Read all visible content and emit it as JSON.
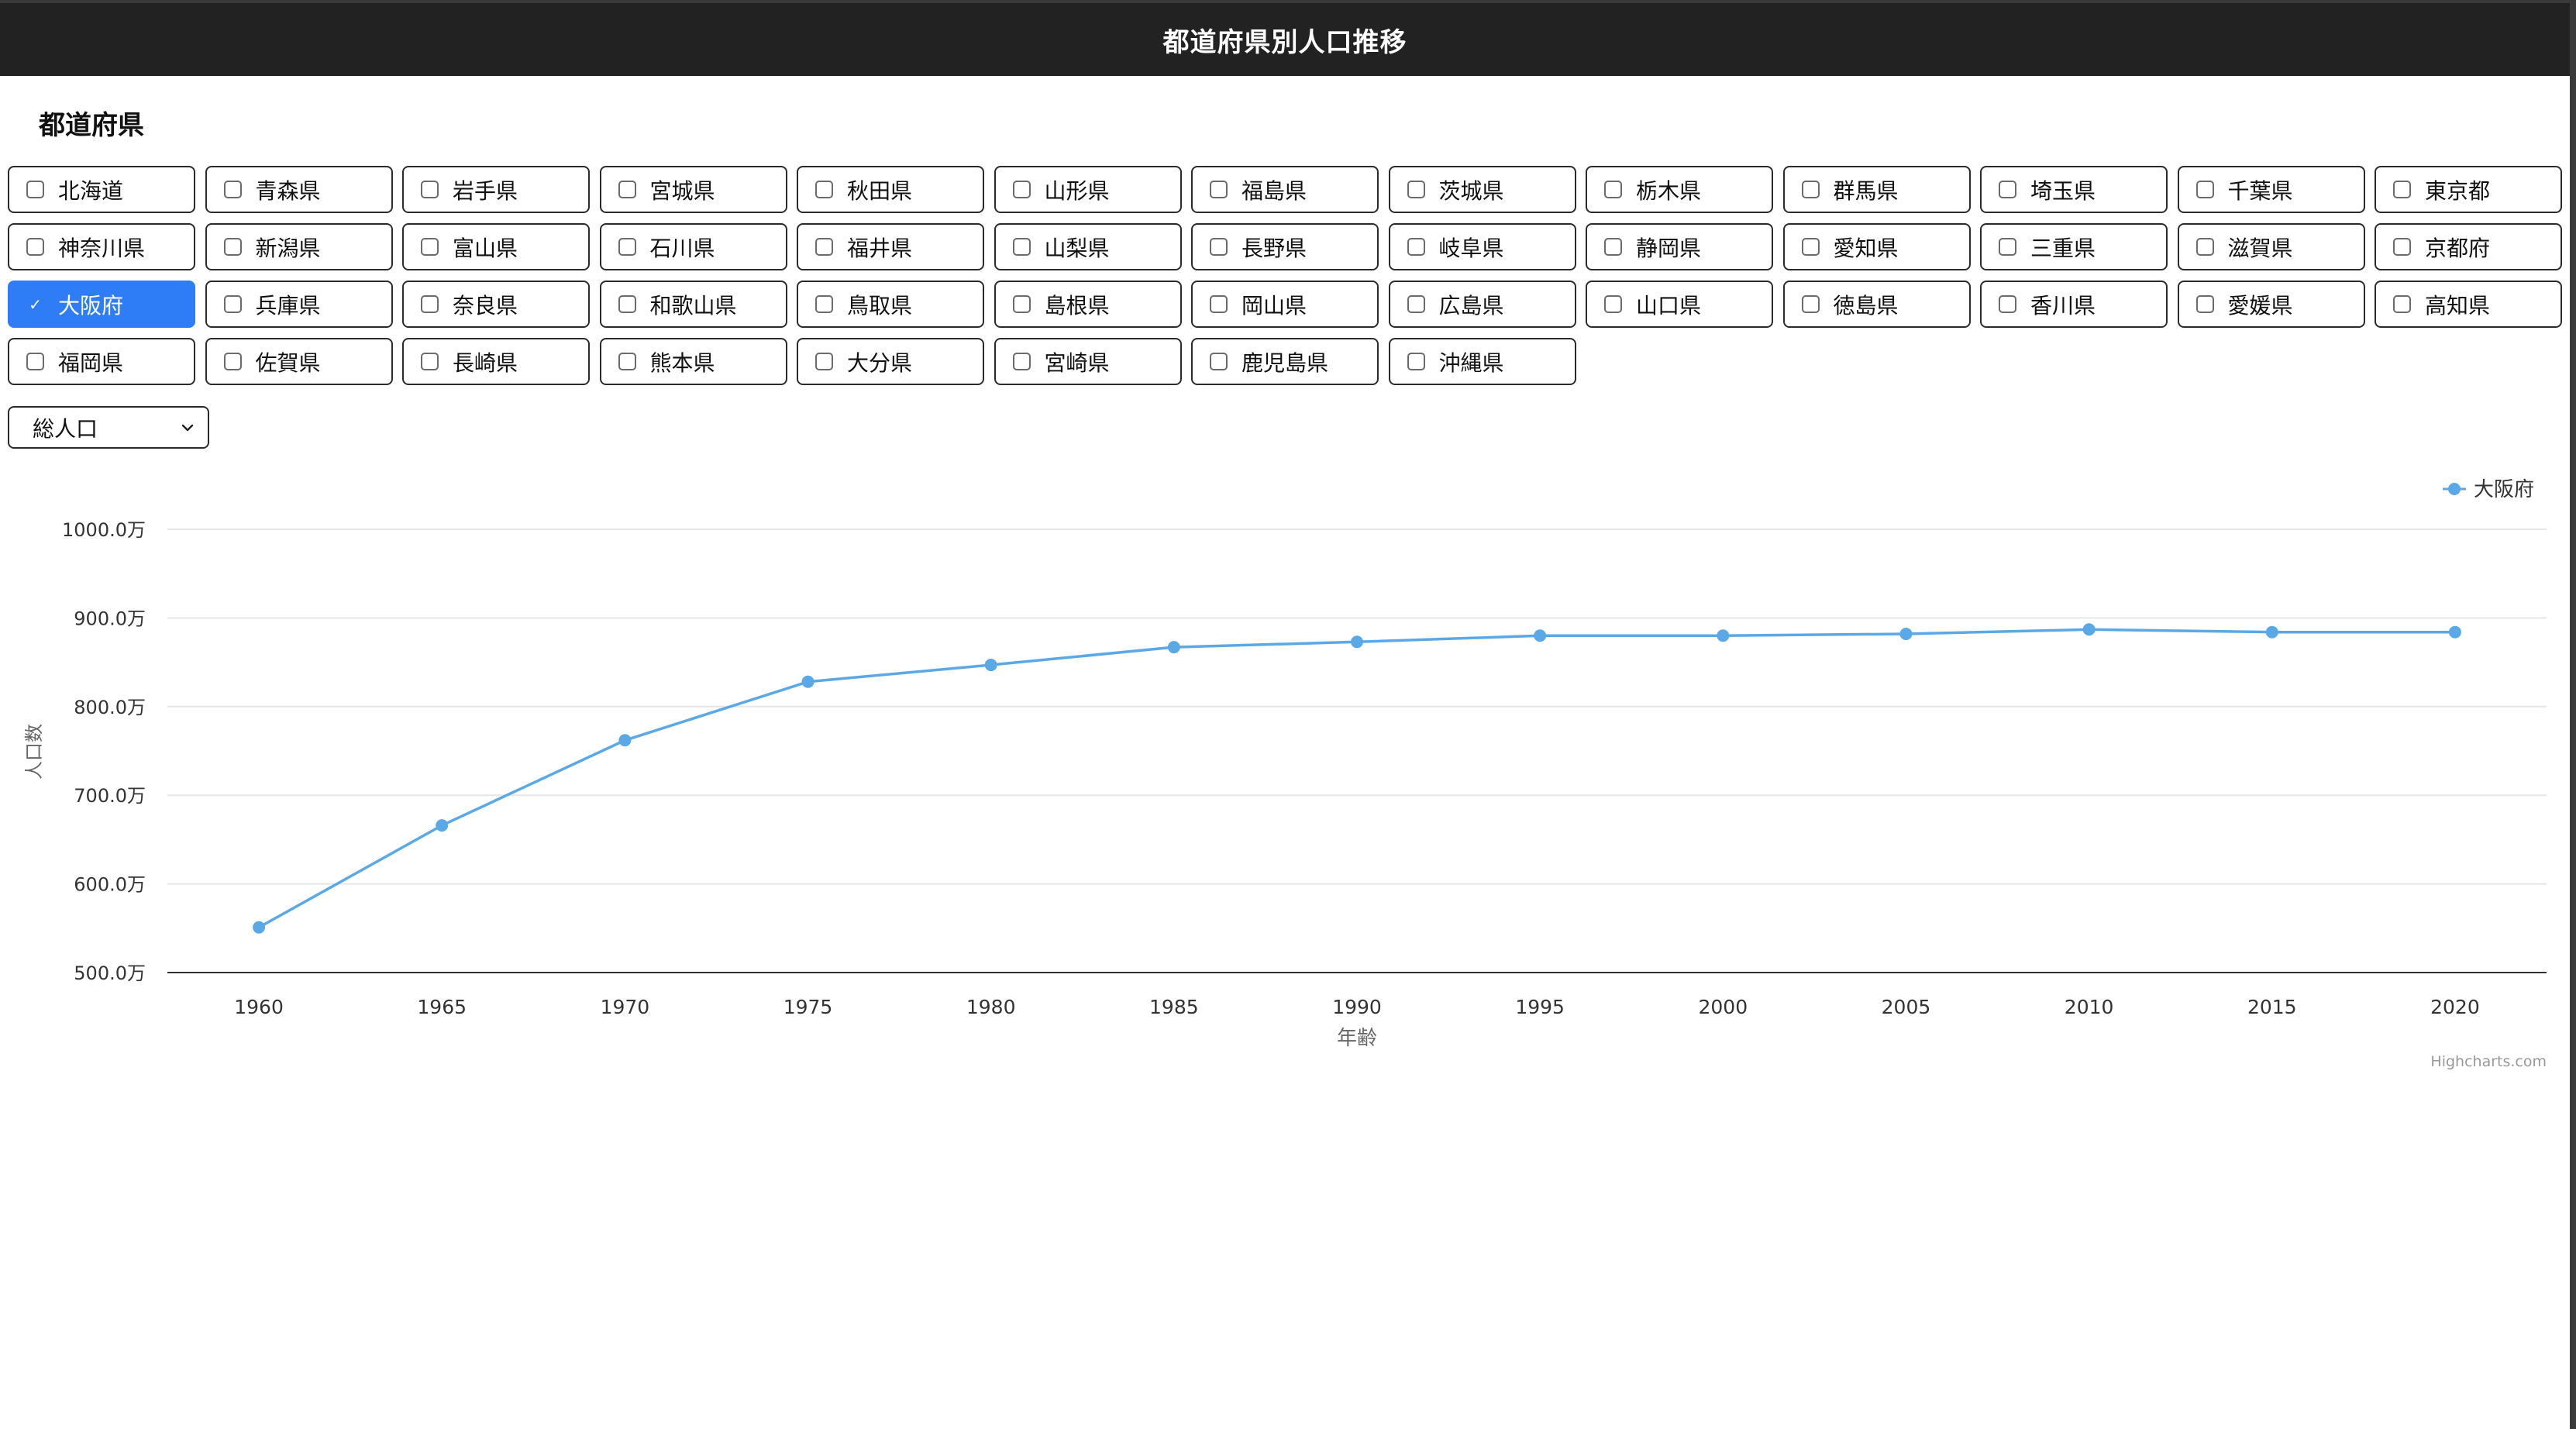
{
  "header": {
    "title": "都道府県別人口推移"
  },
  "section": {
    "title": "都道府県"
  },
  "prefectures": [
    {
      "label": "北海道",
      "checked": false
    },
    {
      "label": "青森県",
      "checked": false
    },
    {
      "label": "岩手県",
      "checked": false
    },
    {
      "label": "宮城県",
      "checked": false
    },
    {
      "label": "秋田県",
      "checked": false
    },
    {
      "label": "山形県",
      "checked": false
    },
    {
      "label": "福島県",
      "checked": false
    },
    {
      "label": "茨城県",
      "checked": false
    },
    {
      "label": "栃木県",
      "checked": false
    },
    {
      "label": "群馬県",
      "checked": false
    },
    {
      "label": "埼玉県",
      "checked": false
    },
    {
      "label": "千葉県",
      "checked": false
    },
    {
      "label": "東京都",
      "checked": false
    },
    {
      "label": "神奈川県",
      "checked": false
    },
    {
      "label": "新潟県",
      "checked": false
    },
    {
      "label": "富山県",
      "checked": false
    },
    {
      "label": "石川県",
      "checked": false
    },
    {
      "label": "福井県",
      "checked": false
    },
    {
      "label": "山梨県",
      "checked": false
    },
    {
      "label": "長野県",
      "checked": false
    },
    {
      "label": "岐阜県",
      "checked": false
    },
    {
      "label": "静岡県",
      "checked": false
    },
    {
      "label": "愛知県",
      "checked": false
    },
    {
      "label": "三重県",
      "checked": false
    },
    {
      "label": "滋賀県",
      "checked": false
    },
    {
      "label": "京都府",
      "checked": false
    },
    {
      "label": "大阪府",
      "checked": true
    },
    {
      "label": "兵庫県",
      "checked": false
    },
    {
      "label": "奈良県",
      "checked": false
    },
    {
      "label": "和歌山県",
      "checked": false
    },
    {
      "label": "鳥取県",
      "checked": false
    },
    {
      "label": "島根県",
      "checked": false
    },
    {
      "label": "岡山県",
      "checked": false
    },
    {
      "label": "広島県",
      "checked": false
    },
    {
      "label": "山口県",
      "checked": false
    },
    {
      "label": "徳島県",
      "checked": false
    },
    {
      "label": "香川県",
      "checked": false
    },
    {
      "label": "愛媛県",
      "checked": false
    },
    {
      "label": "高知県",
      "checked": false
    },
    {
      "label": "福岡県",
      "checked": false
    },
    {
      "label": "佐賀県",
      "checked": false
    },
    {
      "label": "長崎県",
      "checked": false
    },
    {
      "label": "熊本県",
      "checked": false
    },
    {
      "label": "大分県",
      "checked": false
    },
    {
      "label": "宮崎県",
      "checked": false
    },
    {
      "label": "鹿児島県",
      "checked": false
    },
    {
      "label": "沖縄県",
      "checked": false
    }
  ],
  "population_type": {
    "selected": "総人口"
  },
  "icons": {
    "checkmark": "check-icon",
    "dropdown": "chevron-down-icon"
  },
  "colors": {
    "accent": "#2f7df6",
    "series": "#5aa9e6",
    "header_bg": "#222222"
  },
  "chart_data": {
    "type": "line",
    "xlabel": "年齢",
    "ylabel": "人口数",
    "x": [
      1960,
      1965,
      1970,
      1975,
      1980,
      1985,
      1990,
      1995,
      2000,
      2005,
      2010,
      2015,
      2020
    ],
    "ylim": [
      500,
      1000
    ],
    "yticks": [
      "1000.0万",
      "900.0万",
      "800.0万",
      "700.0万",
      "600.0万",
      "500.0万"
    ],
    "series": [
      {
        "name": "大阪府",
        "values": [
          551,
          666,
          762,
          828,
          847,
          867,
          873,
          880,
          880,
          882,
          887,
          884,
          884
        ]
      }
    ],
    "legend_position": "top-right",
    "grid": true,
    "credits": "Highcharts.com"
  }
}
